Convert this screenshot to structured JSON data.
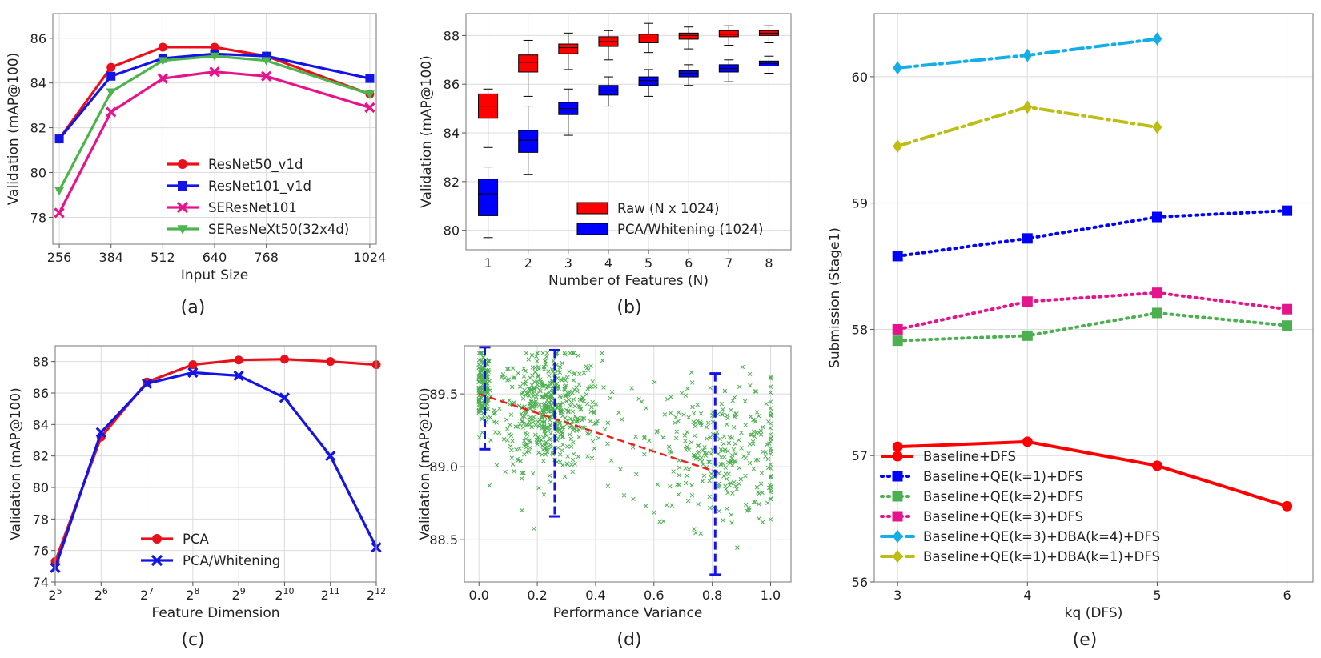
{
  "panels": {
    "a": {
      "label": "(a)",
      "xlabel": "Input Size",
      "ylabel": "Validation (mAP@100)"
    },
    "b": {
      "label": "(b)",
      "xlabel": "Number of Features (N)",
      "ylabel": "Validation (mAP@100)"
    },
    "c": {
      "label": "(c)",
      "xlabel": "Feature Dimension",
      "ylabel": "Validation (mAP@100)"
    },
    "d": {
      "label": "(d)",
      "xlabel": "Performance Variance",
      "ylabel": "Validation (mAP@100)"
    },
    "e": {
      "label": "(e)",
      "xlabel": "kq (DFS)",
      "ylabel": "Submission (Stage1)"
    }
  },
  "chart_data": [
    {
      "id": "a",
      "type": "line",
      "x": [
        256,
        384,
        512,
        640,
        768,
        1024
      ],
      "xticks": [
        "256",
        "384",
        "512",
        "640",
        "768",
        "1024"
      ],
      "xlim": [
        240,
        1040
      ],
      "ylim": [
        76.8,
        87.1
      ],
      "yticks": [
        78,
        80,
        82,
        84,
        86
      ],
      "xlabel": "Input Size",
      "ylabel": "Validation (mAP@100)",
      "grid": true,
      "legend_position": "lower-center",
      "series": [
        {
          "name": "ResNet50_v1d",
          "color": "#e8101a",
          "marker": "circle",
          "values": [
            81.5,
            84.7,
            85.6,
            85.6,
            85.2,
            83.5
          ]
        },
        {
          "name": "ResNet101_v1d",
          "color": "#1414e6",
          "marker": "square",
          "values": [
            81.5,
            84.3,
            85.1,
            85.3,
            85.2,
            84.2
          ]
        },
        {
          "name": "SEResNet101",
          "color": "#e6148c",
          "marker": "x",
          "values": [
            78.2,
            82.7,
            84.2,
            84.5,
            84.3,
            82.9
          ]
        },
        {
          "name": "SEResNeXt50(32x4d)",
          "color": "#4db34d",
          "marker": "triangle-down",
          "values": [
            79.2,
            83.6,
            85.0,
            85.2,
            85.0,
            83.5
          ]
        }
      ]
    },
    {
      "id": "b",
      "type": "box",
      "categories": [
        "1",
        "2",
        "3",
        "4",
        "5",
        "6",
        "7",
        "8"
      ],
      "xlim": [
        0.45,
        8.55
      ],
      "ylim": [
        79.2,
        88.9
      ],
      "yticks": [
        80,
        82,
        84,
        86,
        88
      ],
      "xlabel": "Number of Features (N)",
      "ylabel": "Validation (mAP@100)",
      "grid": true,
      "legend_position": "lower-right",
      "series": [
        {
          "name": "Raw (N x 1024)",
          "color": "#ff0000",
          "boxes": [
            {
              "min": 83.4,
              "q1": 84.6,
              "median": 85.1,
              "q3": 85.6,
              "max": 85.8
            },
            {
              "min": 85.5,
              "q1": 86.5,
              "median": 86.9,
              "q3": 87.2,
              "max": 87.8
            },
            {
              "min": 86.6,
              "q1": 87.25,
              "median": 87.5,
              "q3": 87.65,
              "max": 88.1
            },
            {
              "min": 87.0,
              "q1": 87.55,
              "median": 87.75,
              "q3": 87.95,
              "max": 88.2
            },
            {
              "min": 87.3,
              "q1": 87.7,
              "median": 87.9,
              "q3": 88.05,
              "max": 88.5
            },
            {
              "min": 87.45,
              "q1": 87.85,
              "median": 88.0,
              "q3": 88.1,
              "max": 88.35
            },
            {
              "min": 87.6,
              "q1": 87.95,
              "median": 88.05,
              "q3": 88.2,
              "max": 88.4
            },
            {
              "min": 87.7,
              "q1": 88.0,
              "median": 88.1,
              "q3": 88.2,
              "max": 88.4
            }
          ]
        },
        {
          "name": "PCA/Whitening (1024)",
          "color": "#0000ff",
          "boxes": [
            {
              "min": 79.7,
              "q1": 80.6,
              "median": 81.5,
              "q3": 82.1,
              "max": 82.6
            },
            {
              "min": 82.3,
              "q1": 83.2,
              "median": 83.7,
              "q3": 84.1,
              "max": 85.1
            },
            {
              "min": 83.9,
              "q1": 84.75,
              "median": 85.0,
              "q3": 85.25,
              "max": 85.8
            },
            {
              "min": 85.1,
              "q1": 85.55,
              "median": 85.75,
              "q3": 85.95,
              "max": 86.3
            },
            {
              "min": 85.5,
              "q1": 85.95,
              "median": 86.15,
              "q3": 86.3,
              "max": 86.6
            },
            {
              "min": 85.95,
              "q1": 86.3,
              "median": 86.45,
              "q3": 86.55,
              "max": 86.8
            },
            {
              "min": 86.1,
              "q1": 86.5,
              "median": 86.65,
              "q3": 86.8,
              "max": 87.0
            },
            {
              "min": 86.45,
              "q1": 86.75,
              "median": 86.85,
              "q3": 86.95,
              "max": 87.15
            }
          ]
        }
      ]
    },
    {
      "id": "c",
      "type": "line",
      "x": [
        5,
        6,
        7,
        8,
        9,
        10,
        11,
        12
      ],
      "xticks": [
        "5",
        "6",
        "7",
        "8",
        "9",
        "10",
        "11",
        "12"
      ],
      "xtick_base": "2",
      "xlim": [
        5,
        12
      ],
      "ylim": [
        74,
        89
      ],
      "yticks": [
        74,
        76,
        78,
        80,
        82,
        84,
        86,
        88
      ],
      "xlabel": "Feature Dimension",
      "ylabel": "Validation (mAP@100)",
      "grid": true,
      "legend_position": "lower-center",
      "series": [
        {
          "name": "PCA",
          "color": "#e8101a",
          "marker": "circle",
          "values": [
            75.3,
            83.2,
            86.7,
            87.8,
            88.1,
            88.15,
            88.0,
            87.8
          ]
        },
        {
          "name": "PCA/Whitening",
          "color": "#1414e6",
          "marker": "x",
          "values": [
            74.9,
            83.5,
            86.6,
            87.3,
            87.1,
            85.7,
            82.0,
            76.2
          ]
        }
      ]
    },
    {
      "id": "d",
      "type": "scatter",
      "xlim": [
        -0.05,
        1.07
      ],
      "ylim": [
        88.21,
        89.83
      ],
      "xticks": [
        0.0,
        0.2,
        0.4,
        0.6,
        0.8,
        1.0
      ],
      "yticks": [
        88.5,
        89.0,
        89.5
      ],
      "xlabel": "Performance Variance",
      "ylabel": "Validation (mAP@100)",
      "grid": true,
      "point_color": "#4caf50",
      "clusters": [
        {
          "cx": 0.015,
          "cy": 89.55,
          "sx": 0.012,
          "sy": 0.12,
          "n": 160
        },
        {
          "cx": 0.24,
          "cy": 89.38,
          "sx": 0.09,
          "sy": 0.2,
          "n": 520
        },
        {
          "cx": 0.82,
          "cy": 89.1,
          "sx": 0.13,
          "sy": 0.25,
          "n": 300
        }
      ],
      "trend": {
        "color": "#ee2020",
        "x": [
          0.0,
          0.82
        ],
        "y": [
          89.5,
          88.96
        ]
      },
      "error_bars": [
        {
          "x": 0.02,
          "low": 89.12,
          "high": 89.82
        },
        {
          "x": 0.26,
          "low": 88.66,
          "high": 89.8
        },
        {
          "x": 0.81,
          "low": 88.26,
          "high": 89.64
        }
      ],
      "error_bar_color": "#1414e6"
    },
    {
      "id": "e",
      "type": "line",
      "x": [
        3,
        4,
        5,
        6
      ],
      "xticks": [
        "3",
        "4",
        "5",
        "6"
      ],
      "xlim": [
        2.82,
        6.2
      ],
      "ylim": [
        56,
        60.5
      ],
      "yticks": [
        56,
        57,
        58,
        59,
        60
      ],
      "xlabel": "kq (DFS)",
      "ylabel": "Submission (Stage1)",
      "grid": true,
      "legend_position": "lower-left",
      "series": [
        {
          "name": "Baseline+DFS",
          "color": "#ff0000",
          "marker": "circle",
          "dash": "solid",
          "values": [
            57.07,
            57.11,
            56.92,
            56.6
          ]
        },
        {
          "name": "Baseline+QE(k=1)+DFS",
          "color": "#0000ff",
          "marker": "square",
          "dash": "dotted",
          "values": [
            58.58,
            58.72,
            58.89,
            58.94
          ]
        },
        {
          "name": "Baseline+QE(k=2)+DFS",
          "color": "#4caf50",
          "marker": "square",
          "dash": "dotted",
          "values": [
            57.91,
            57.95,
            58.13,
            58.03
          ]
        },
        {
          "name": "Baseline+QE(k=3)+DFS",
          "color": "#e6148c",
          "marker": "square",
          "dash": "dotted",
          "values": [
            58.0,
            58.22,
            58.29,
            58.16
          ]
        },
        {
          "name": "Baseline+QE(k=3)+DBA(k=4)+DFS",
          "color": "#13aee8",
          "marker": "diamond",
          "dash": "dashdot",
          "values": [
            60.07,
            60.17,
            60.3,
            null
          ]
        },
        {
          "name": "Baseline+QE(k=1)+DBA(k=1)+DFS",
          "color": "#bdbd13",
          "marker": "diamond",
          "dash": "dashdot",
          "values": [
            59.45,
            59.76,
            59.6,
            null
          ]
        }
      ]
    }
  ]
}
